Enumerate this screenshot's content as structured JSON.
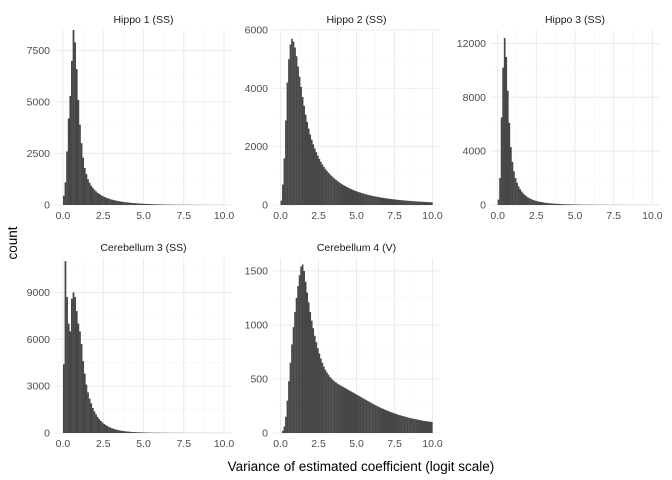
{
  "chart_data": {
    "type": "bar",
    "layout": "facet grid, 3 columns x 2 rows, histograms, minimal theme, free y scales",
    "bar_color": "#474747",
    "grid": true,
    "xlabel": "Variance of estimated coefficient (logit scale)",
    "ylabel": "count",
    "xlim": [
      0,
      10
    ],
    "x_ticks": [
      "0.0",
      "2.5",
      "5.0",
      "7.5",
      "10.0"
    ],
    "facets": [
      {
        "title": "Hippo 1 (SS)",
        "ylim": [
          0,
          8500
        ],
        "y_ticks": [
          0,
          2500,
          5000,
          7500
        ],
        "y_tick_labels": [
          "0",
          "2500",
          "5000",
          "7500"
        ],
        "bin_width": 0.1,
        "bin_start": 0,
        "counts": [
          450,
          1100,
          2600,
          4200,
          5300,
          7000,
          8500,
          7900,
          6600,
          5100,
          3900,
          3000,
          2300,
          1800,
          1500,
          1250,
          1080,
          940,
          830,
          740,
          660,
          590,
          535,
          485,
          440,
          400,
          365,
          335,
          305,
          280,
          258,
          238,
          220,
          203,
          188,
          174,
          161,
          149,
          138,
          128,
          119,
          111,
          103,
          96,
          89,
          83,
          77,
          72,
          67,
          62,
          58,
          54,
          50,
          47,
          44,
          41,
          38,
          36,
          33,
          31,
          29,
          27,
          25,
          24,
          22,
          21,
          20,
          18,
          17,
          16,
          15,
          14,
          13,
          12,
          11,
          11,
          10,
          10,
          9,
          9,
          8,
          8,
          7,
          7,
          7,
          6,
          6,
          6,
          5,
          5,
          5,
          5,
          4,
          4,
          4,
          4,
          3,
          3,
          3,
          3
        ]
      },
      {
        "title": "Hippo 2 (SS)",
        "ylim": [
          0,
          6000
        ],
        "y_ticks": [
          0,
          2000,
          4000,
          6000
        ],
        "y_tick_labels": [
          "0",
          "2000",
          "4000",
          "6000"
        ],
        "bin_width": 0.1,
        "bin_start": 0,
        "counts": [
          150,
          700,
          1600,
          2900,
          4200,
          5000,
          5500,
          5700,
          5600,
          5400,
          5100,
          4750,
          4400,
          4050,
          3700,
          3400,
          3100,
          2850,
          2620,
          2420,
          2240,
          2080,
          1940,
          1810,
          1690,
          1580,
          1480,
          1390,
          1310,
          1240,
          1170,
          1110,
          1050,
          1000,
          950,
          905,
          860,
          820,
          780,
          745,
          710,
          680,
          650,
          620,
          595,
          570,
          545,
          522,
          500,
          480,
          460,
          442,
          425,
          408,
          393,
          378,
          364,
          350,
          337,
          325,
          313,
          302,
          291,
          281,
          271,
          262,
          253,
          244,
          236,
          228,
          220,
          213,
          206,
          199,
          193,
          187,
          181,
          175,
          170,
          165,
          160,
          155,
          150,
          146,
          142,
          138,
          134,
          130,
          126,
          122,
          119,
          116,
          113,
          110,
          107,
          104,
          101,
          98,
          95,
          92
        ]
      },
      {
        "title": "Hippo 3 (SS)",
        "ylim": [
          0,
          13000
        ],
        "y_ticks": [
          0,
          4000,
          8000,
          12000
        ],
        "y_tick_labels": [
          "0",
          "4000",
          "8000",
          "12000"
        ],
        "bin_width": 0.1,
        "bin_start": 0,
        "counts": [
          400,
          2000,
          6500,
          10200,
          12400,
          11000,
          8500,
          6100,
          4300,
          3200,
          2500,
          2000,
          1650,
          1380,
          1170,
          1000,
          860,
          745,
          650,
          570,
          500,
          442,
          392,
          349,
          312,
          280,
          252,
          228,
          207,
          188,
          171,
          156,
          143,
          131,
          120,
          110,
          101,
          93,
          86,
          80,
          74,
          68,
          63,
          58,
          54,
          50,
          47,
          44,
          41,
          38,
          36,
          34,
          32,
          30,
          28,
          26,
          25,
          23,
          22,
          21,
          20,
          19,
          18,
          17,
          16,
          15,
          14,
          14,
          13,
          12,
          12,
          11,
          11,
          10,
          10,
          9,
          9,
          9,
          8,
          8,
          8,
          7,
          7,
          7,
          7,
          6,
          6,
          6,
          6,
          6,
          5,
          5,
          5,
          5,
          5,
          5,
          4,
          4,
          4,
          4
        ]
      },
      {
        "title": "Cerebellum 3 (SS)",
        "ylim": [
          0,
          11200
        ],
        "y_ticks": [
          0,
          3000,
          6000,
          9000
        ],
        "y_tick_labels": [
          "0",
          "3000",
          "6000",
          "9000"
        ],
        "bin_width": 0.1,
        "bin_start": 0,
        "counts": [
          4400,
          11000,
          8700,
          7000,
          6500,
          8600,
          9000,
          8700,
          7800,
          7000,
          6500,
          5700,
          4600,
          3800,
          3100,
          2600,
          2200,
          1900,
          1600,
          1380,
          1190,
          1030,
          890,
          770,
          670,
          585,
          510,
          445,
          390,
          342,
          300,
          264,
          232,
          205,
          181,
          160,
          142,
          126,
          112,
          100,
          89,
          80,
          72,
          64,
          58,
          52,
          47,
          42,
          38,
          35,
          32,
          29,
          27,
          25,
          23,
          21,
          19,
          18,
          17,
          16,
          15,
          14,
          13,
          12,
          11,
          11,
          10,
          10,
          9,
          9,
          8,
          8,
          7,
          7,
          7,
          6,
          6,
          6,
          5,
          5,
          5,
          5,
          5,
          4,
          4,
          4,
          4,
          4,
          4,
          3,
          3,
          3,
          3,
          3,
          3,
          3,
          2,
          2,
          2,
          2
        ]
      },
      {
        "title": "Cerebellum 4 (V)",
        "ylim": [
          0,
          1620
        ],
        "y_ticks": [
          0,
          500,
          1000,
          1500
        ],
        "y_tick_labels": [
          "0",
          "500",
          "1000",
          "1500"
        ],
        "bin_width": 0.1,
        "bin_start": 0,
        "counts": [
          0,
          20,
          60,
          150,
          300,
          480,
          650,
          820,
          980,
          1120,
          1250,
          1360,
          1460,
          1540,
          1560,
          1500,
          1400,
          1300,
          1210,
          1120,
          1040,
          970,
          900,
          840,
          785,
          735,
          690,
          650,
          615,
          585,
          560,
          540,
          520,
          505,
          490,
          478,
          467,
          457,
          448,
          440,
          432,
          424,
          416,
          408,
          400,
          392,
          384,
          376,
          368,
          360,
          352,
          344,
          336,
          328,
          320,
          312,
          304,
          296,
          288,
          280,
          272,
          264,
          257,
          250,
          243,
          236,
          229,
          223,
          217,
          211,
          205,
          199,
          194,
          189,
          184,
          179,
          174,
          169,
          165,
          161,
          157,
          153,
          149,
          145,
          141,
          138,
          135,
          132,
          129,
          126,
          123,
          120,
          117,
          114,
          112,
          110,
          108,
          106,
          104,
          102
        ]
      }
    ]
  }
}
